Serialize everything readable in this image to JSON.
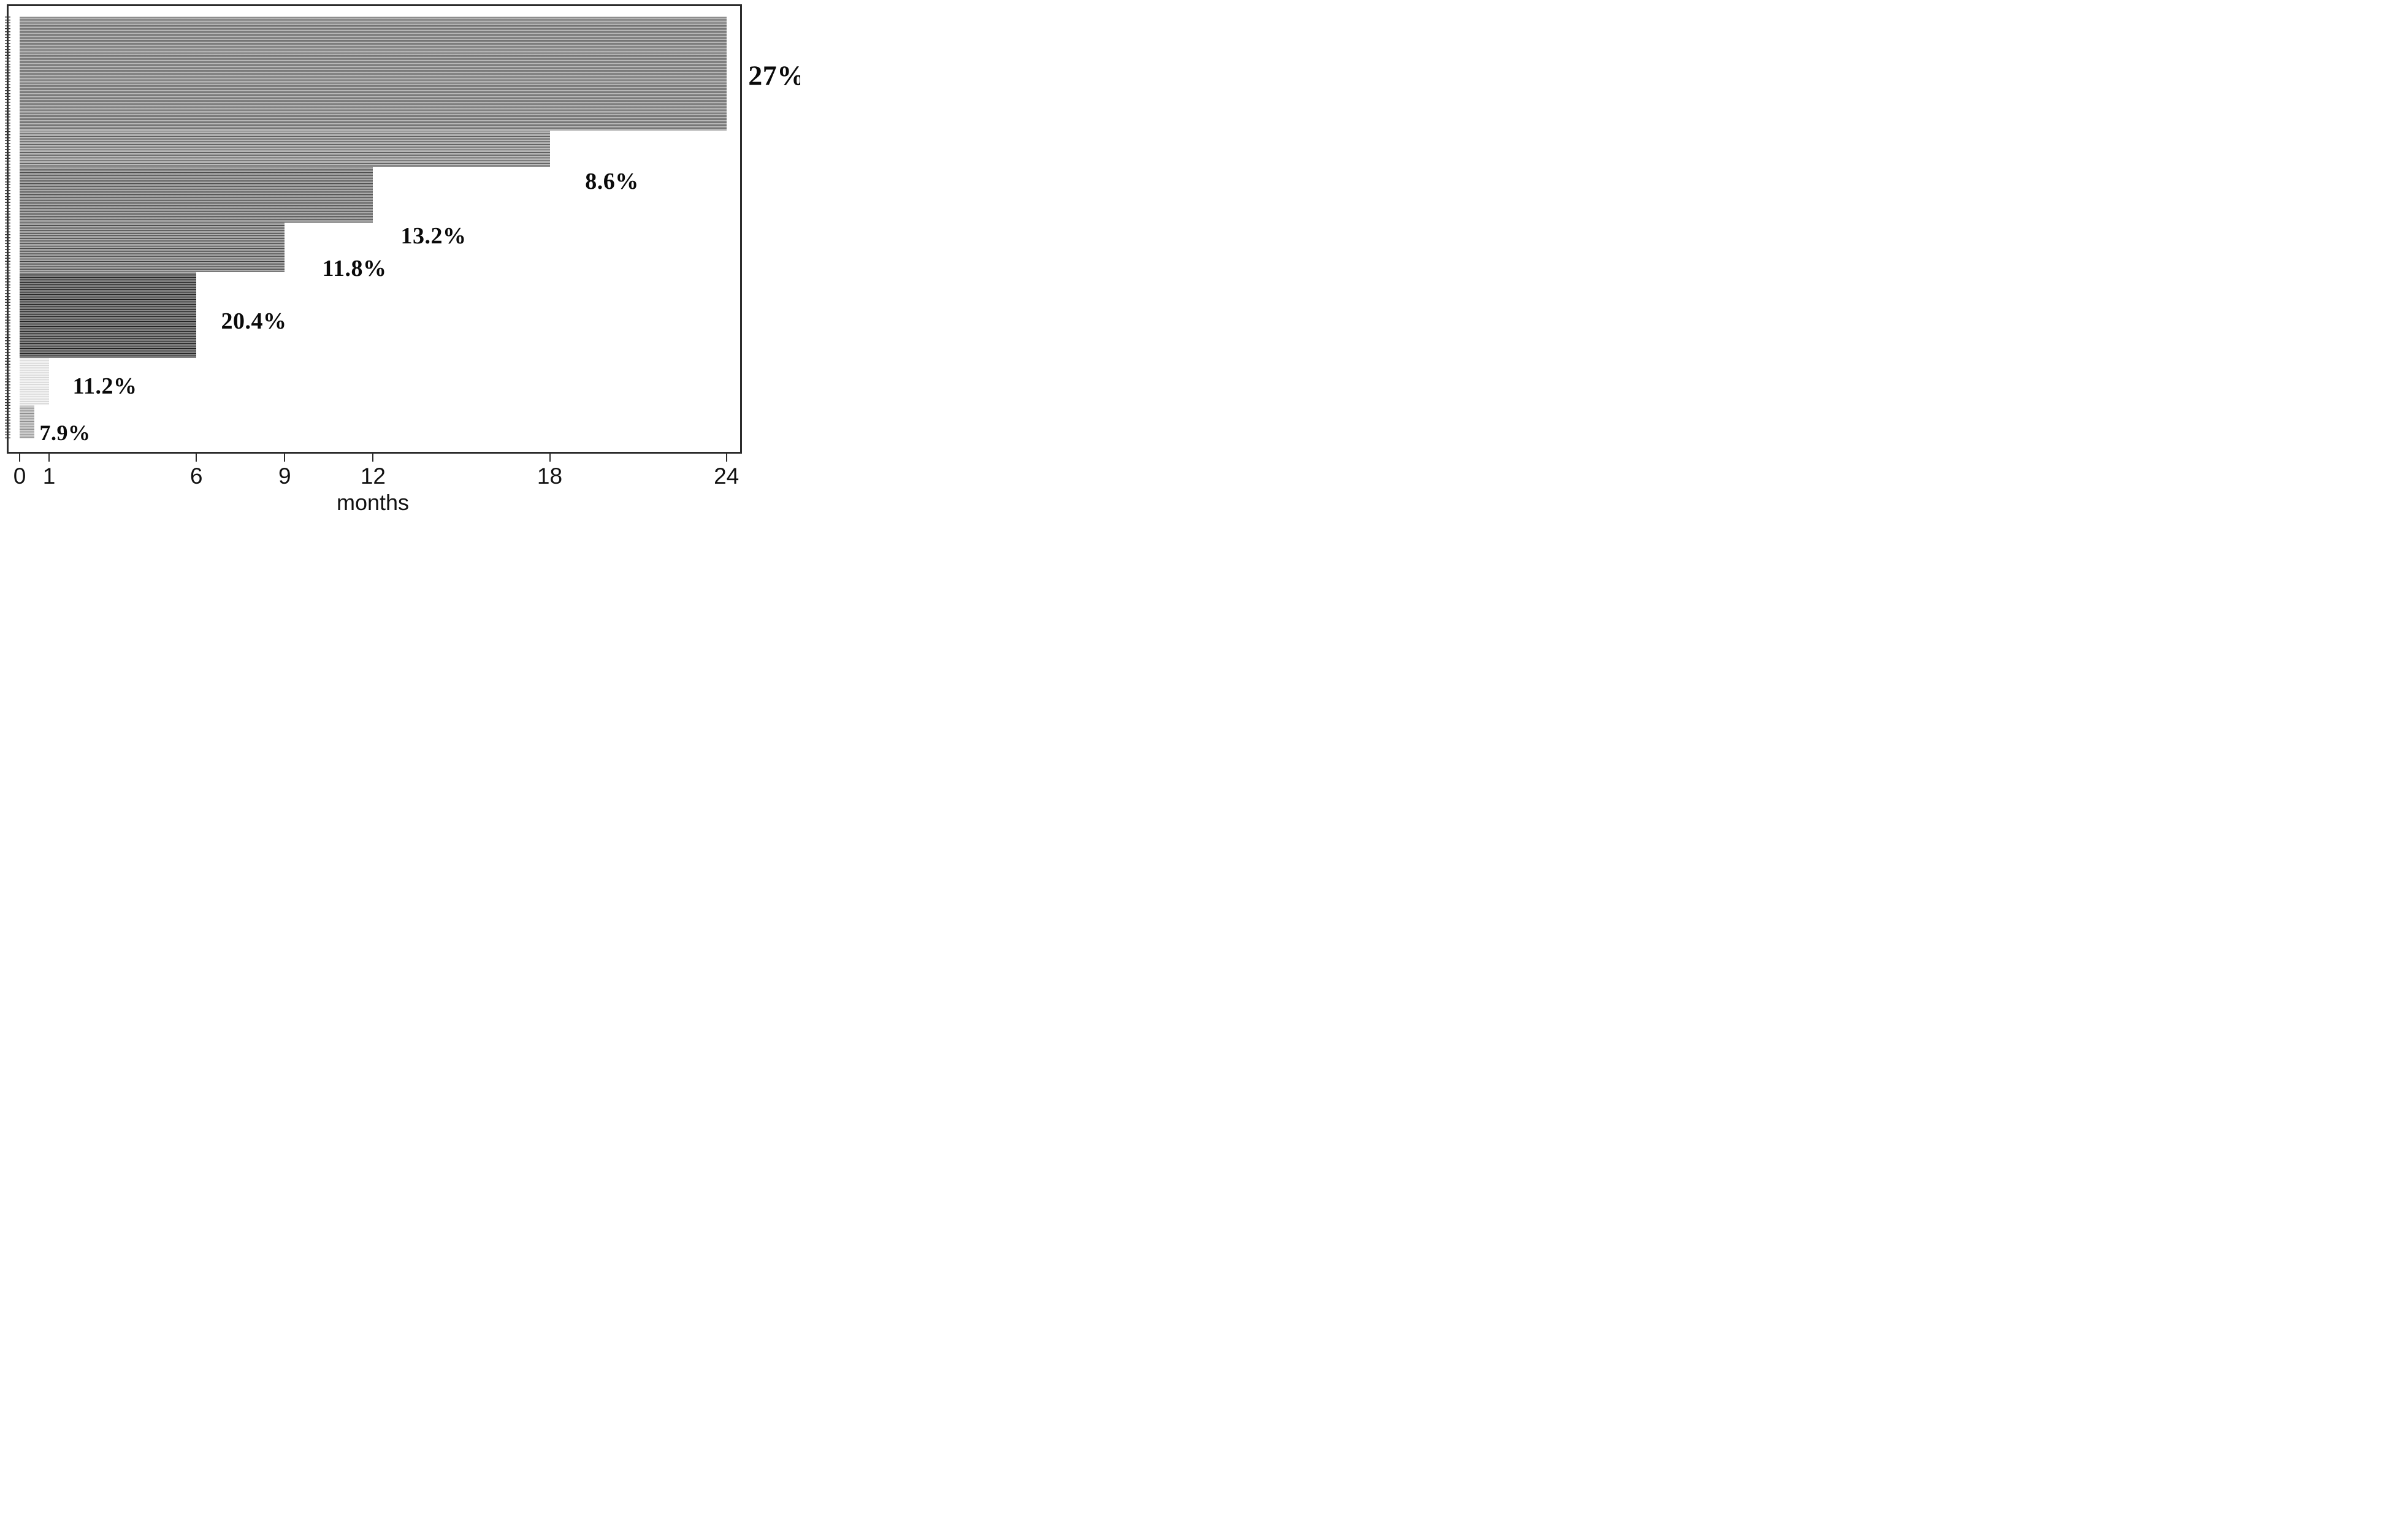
{
  "figure": {
    "background": "#ffffff",
    "frame_color": "#2b2b2b",
    "text_color": "#0a0a0a"
  },
  "chart_data": {
    "type": "bar",
    "variant": "horizontal-stacked-duration",
    "title": "",
    "xlabel": "months",
    "ylabel": "",
    "xlim": [
      0,
      24
    ],
    "grid": false,
    "legend": "none",
    "x_ticks": [
      {
        "value": 0,
        "label": "0"
      },
      {
        "value": 1,
        "label": "1"
      },
      {
        "value": 6,
        "label": "6"
      },
      {
        "value": 9,
        "label": "9"
      },
      {
        "value": 12,
        "label": "12"
      },
      {
        "value": 18,
        "label": "18"
      },
      {
        "value": 24,
        "label": "24"
      }
    ],
    "segments": [
      {
        "label": "27%",
        "percent": 27.0,
        "duration_months": 24,
        "stripe": {
          "line": "#4d4d4d",
          "fill": "#9a9a9a",
          "highlight": "#bdbdbd",
          "period": 4.9
        }
      },
      {
        "label": "8.6%",
        "percent": 8.6,
        "duration_months": 18,
        "stripe": {
          "line": "#555555",
          "fill": "#a0a0a0",
          "highlight": "#c4c4c4",
          "period": 4.4
        }
      },
      {
        "label": "13.2%",
        "percent": 13.2,
        "duration_months": 12,
        "stripe": {
          "line": "#454545",
          "fill": "#8f8f8f",
          "highlight": "#b2b2b2",
          "period": 4.5
        }
      },
      {
        "label": "11.8%",
        "percent": 11.8,
        "duration_months": 9,
        "stripe": {
          "line": "#3f3f3f",
          "fill": "#939393",
          "highlight": "#b6b6b6",
          "period": 4.2
        }
      },
      {
        "label": "20.4%",
        "percent": 20.4,
        "duration_months": 6,
        "stripe": {
          "line": "#1e1e1e",
          "fill": "#6f6f6f",
          "highlight": "#909090",
          "period": 4.0
        }
      },
      {
        "label": "11.2%",
        "percent": 11.2,
        "duration_months": 1,
        "stripe": {
          "line": "#d2d2d2",
          "fill": "#ececec",
          "highlight": "#f7f7f7",
          "period": 3.9
        }
      },
      {
        "label": "7.9%",
        "percent": 7.9,
        "duration_months": 0.5,
        "stripe": {
          "line": "#8f8f8f",
          "fill": "#bdbdbd",
          "highlight": "#d6d6d6",
          "period": 4.3
        }
      }
    ]
  }
}
